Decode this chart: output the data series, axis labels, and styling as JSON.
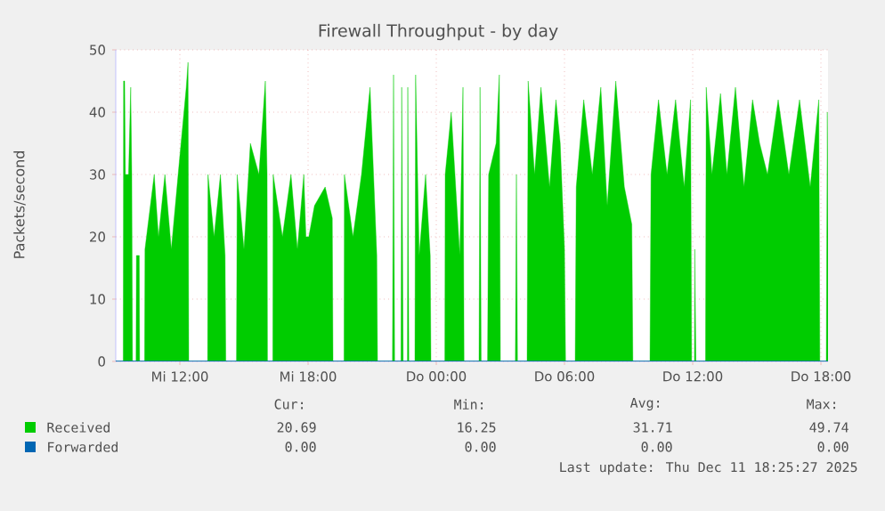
{
  "chart_data": {
    "type": "area",
    "title": "Firewall Throughput - by day",
    "ylabel": "Packets/second",
    "xlim": [
      "2025-12-10T09:00",
      "2025-12-11T18:20"
    ],
    "ylim": [
      0,
      50
    ],
    "xticks": [
      {
        "value": "2025-12-10T12:00",
        "label": "Mi 12:00"
      },
      {
        "value": "2025-12-10T18:00",
        "label": "Mi 18:00"
      },
      {
        "value": "2025-12-11T00:00",
        "label": "Do 00:00"
      },
      {
        "value": "2025-12-11T06:00",
        "label": "Do 06:00"
      },
      {
        "value": "2025-12-11T12:00",
        "label": "Do 12:00"
      },
      {
        "value": "2025-12-11T18:00",
        "label": "Do 18:00"
      }
    ],
    "yticks": [
      0,
      10,
      20,
      30,
      40,
      50
    ],
    "grid": true,
    "legend": "bottom",
    "series": [
      {
        "name": "Received",
        "color": "#00cc00",
        "x": [
          "2025-12-10T09:00",
          "2025-12-10T09:21",
          "2025-12-10T09:22",
          "2025-12-10T09:25",
          "2025-12-10T09:27",
          "2025-12-10T09:36",
          "2025-12-10T09:42",
          "2025-12-10T09:45",
          "2025-12-10T09:47",
          "2025-12-10T09:57",
          "2025-12-10T09:58",
          "2025-12-10T10:06",
          "2025-12-10T10:07",
          "2025-12-10T10:21",
          "2025-12-10T10:22",
          "2025-12-10T10:48",
          "2025-12-10T11:00",
          "2025-12-10T11:18",
          "2025-12-10T11:36",
          "2025-12-10T12:00",
          "2025-12-10T12:18",
          "2025-12-10T12:23",
          "2025-12-10T12:25",
          "2025-12-10T13:18",
          "2025-12-10T13:19",
          "2025-12-10T13:36",
          "2025-12-10T13:54",
          "2025-12-10T14:07",
          "2025-12-10T14:09",
          "2025-12-10T14:39",
          "2025-12-10T14:41",
          "2025-12-10T15:00",
          "2025-12-10T15:18",
          "2025-12-10T15:42",
          "2025-12-10T16:00",
          "2025-12-10T16:05",
          "2025-12-10T16:06",
          "2025-12-10T16:21",
          "2025-12-10T16:22",
          "2025-12-10T16:48",
          "2025-12-10T17:12",
          "2025-12-10T17:30",
          "2025-12-10T17:48",
          "2025-12-10T17:54",
          "2025-12-10T18:02",
          "2025-12-10T18:18",
          "2025-12-10T18:48",
          "2025-12-10T19:08",
          "2025-12-10T19:10",
          "2025-12-10T19:41",
          "2025-12-10T19:42",
          "2025-12-10T20:06",
          "2025-12-10T20:30",
          "2025-12-10T20:54",
          "2025-12-10T21:13",
          "2025-12-10T21:15",
          "2025-12-10T21:57",
          "2025-12-10T22:00",
          "2025-12-10T22:03",
          "2025-12-10T22:21",
          "2025-12-10T22:23",
          "2025-12-10T22:27",
          "2025-12-10T22:39",
          "2025-12-10T22:40",
          "2025-12-10T22:43",
          "2025-12-10T23:00",
          "2025-12-10T23:02",
          "2025-12-10T23:12",
          "2025-12-10T23:30",
          "2025-12-10T23:43",
          "2025-12-10T23:45",
          "2025-12-11T00:24",
          "2025-12-11T00:25",
          "2025-12-11T00:42",
          "2025-12-11T01:06",
          "2025-12-11T01:15",
          "2025-12-11T01:18",
          "2025-12-11T02:00",
          "2025-12-11T02:03",
          "2025-12-11T02:06",
          "2025-12-11T02:24",
          "2025-12-11T02:27",
          "2025-12-11T02:48",
          "2025-12-11T02:57",
          "2025-12-11T03:00",
          "2025-12-11T03:42",
          "2025-12-11T03:45",
          "2025-12-11T03:48",
          "2025-12-11T04:15",
          "2025-12-11T04:18",
          "2025-12-11T04:36",
          "2025-12-11T04:54",
          "2025-12-11T05:18",
          "2025-12-11T05:36",
          "2025-12-11T05:48",
          "2025-12-11T06:00",
          "2025-12-11T06:03",
          "2025-12-11T06:30",
          "2025-12-11T06:33",
          "2025-12-11T06:54",
          "2025-12-11T07:18",
          "2025-12-11T07:42",
          "2025-12-11T08:00",
          "2025-12-11T08:24",
          "2025-12-11T08:48",
          "2025-12-11T09:09",
          "2025-12-11T09:12",
          "2025-12-11T10:00",
          "2025-12-11T10:03",
          "2025-12-11T10:24",
          "2025-12-11T10:48",
          "2025-12-11T11:12",
          "2025-12-11T11:36",
          "2025-12-11T11:54",
          "2025-12-11T11:57",
          "2025-12-11T12:05",
          "2025-12-11T12:06",
          "2025-12-11T12:09",
          "2025-12-11T12:36",
          "2025-12-11T12:38",
          "2025-12-11T12:54",
          "2025-12-11T13:18",
          "2025-12-11T13:36",
          "2025-12-11T14:00",
          "2025-12-11T14:24",
          "2025-12-11T14:48",
          "2025-12-11T15:08",
          "2025-12-11T15:30",
          "2025-12-11T16:00",
          "2025-12-11T16:30",
          "2025-12-11T17:00",
          "2025-12-11T17:30",
          "2025-12-11T17:54",
          "2025-12-11T17:57",
          "2025-12-11T18:15",
          "2025-12-11T18:18",
          "2025-12-11T18:20"
        ],
        "values": [
          0,
          0,
          45,
          45,
          30,
          30,
          44,
          30,
          0,
          0,
          17,
          17,
          0,
          0,
          18,
          30,
          20,
          30,
          18,
          33,
          44,
          48,
          0,
          0,
          30,
          20,
          30,
          17,
          0,
          0,
          30,
          18,
          35,
          30,
          45,
          30,
          0,
          0,
          30,
          20,
          30,
          18,
          30,
          20,
          20,
          25,
          28,
          23,
          0,
          0,
          30,
          20,
          30,
          44,
          17,
          0,
          0,
          46,
          0,
          0,
          44,
          0,
          0,
          44,
          0,
          0,
          46,
          17,
          30,
          17,
          0,
          0,
          30,
          40,
          17,
          44,
          0,
          0,
          44,
          0,
          0,
          30,
          35,
          46,
          0,
          0,
          30,
          0,
          0,
          45,
          30,
          44,
          28,
          42,
          35,
          18,
          0,
          0,
          28,
          42,
          30,
          44,
          25,
          45,
          28,
          22,
          0,
          0,
          30,
          42,
          30,
          42,
          28,
          42,
          0,
          0,
          18,
          0,
          0,
          44,
          30,
          43,
          30,
          44,
          28,
          42,
          35,
          30,
          42,
          30,
          42,
          28,
          42,
          0,
          0,
          40,
          20
        ]
      },
      {
        "name": "Forwarded",
        "color": "#0066b3",
        "type": "line",
        "x": [
          "2025-12-10T09:00",
          "2025-12-11T18:20"
        ],
        "values": [
          0,
          0
        ]
      }
    ],
    "annotations": [
      "Cur:",
      "Min:",
      "Avg:",
      "Max:",
      "20.69",
      "16.25",
      "31.71",
      "49.74",
      "0.00",
      "0.00",
      "0.00",
      "0.00",
      "Last update: Thu Dec 11 18:25:27 2025"
    ]
  }
}
